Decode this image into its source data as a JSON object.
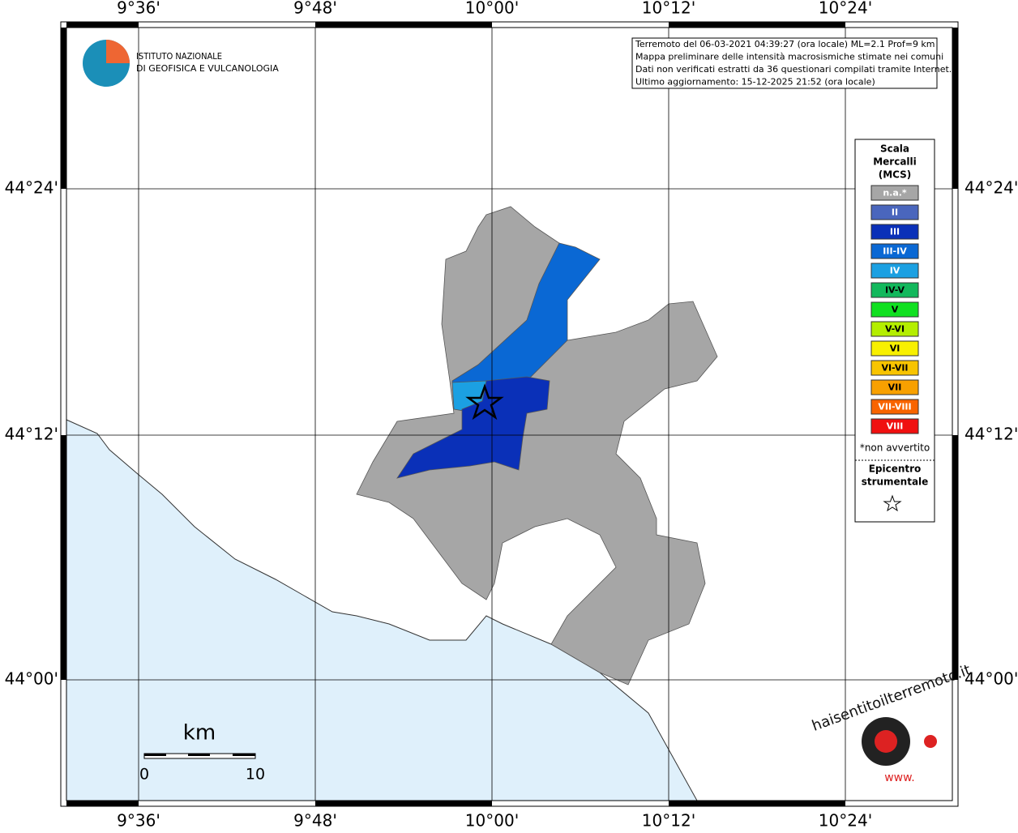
{
  "axes": {
    "lon": [
      "9°36'",
      "9°48'",
      "10°00'",
      "10°12'",
      "10°24'"
    ],
    "lat": [
      "44°24'",
      "44°12'",
      "44°00'"
    ]
  },
  "logo": {
    "line1": "ISTITUTO NAZIONALE",
    "line2": "DI GEOFISICA E VULCANOLOGIA"
  },
  "info": [
    "Terremoto del 06-03-2021 04:39:27 (ora locale) ML=2.1 Prof=9 km",
    "Mappa preliminare delle intensità macrosismiche stimate nei comuni",
    "Dati non verificati estratti da 36 questionari compilati tramite Internet.",
    "Ultimo aggiornamento: 15-12-2025 21:52 (ora locale)"
  ],
  "legend": {
    "title": [
      "Scala",
      "Mercalli",
      "(MCS)"
    ],
    "items": [
      {
        "label": "n.a.*",
        "color": "#a6a6a6"
      },
      {
        "label": "II",
        "color": "#4a66bd"
      },
      {
        "label": "III",
        "color": "#0a30b8"
      },
      {
        "label": "III-IV",
        "color": "#0a68d4"
      },
      {
        "label": "IV",
        "color": "#1ba0e2"
      },
      {
        "label": "IV-V",
        "color": "#12b85c"
      },
      {
        "label": "V",
        "color": "#10e020"
      },
      {
        "label": "V-VI",
        "color": "#b4ee00"
      },
      {
        "label": "VI",
        "color": "#f8f000"
      },
      {
        "label": "VI-VII",
        "color": "#f8c400"
      },
      {
        "label": "VII",
        "color": "#f8a000"
      },
      {
        "label": "VII-VIII",
        "color": "#f86400"
      },
      {
        "label": "VIII",
        "color": "#f01010"
      }
    ],
    "note": "*non avvertito",
    "epicenter": [
      "Epicentro",
      "strumentale"
    ]
  },
  "scalebar": {
    "unit": "km",
    "start": "0",
    "end": "10"
  },
  "site": {
    "name": "haisentitoilterremoto.it",
    "prefix": "www."
  }
}
